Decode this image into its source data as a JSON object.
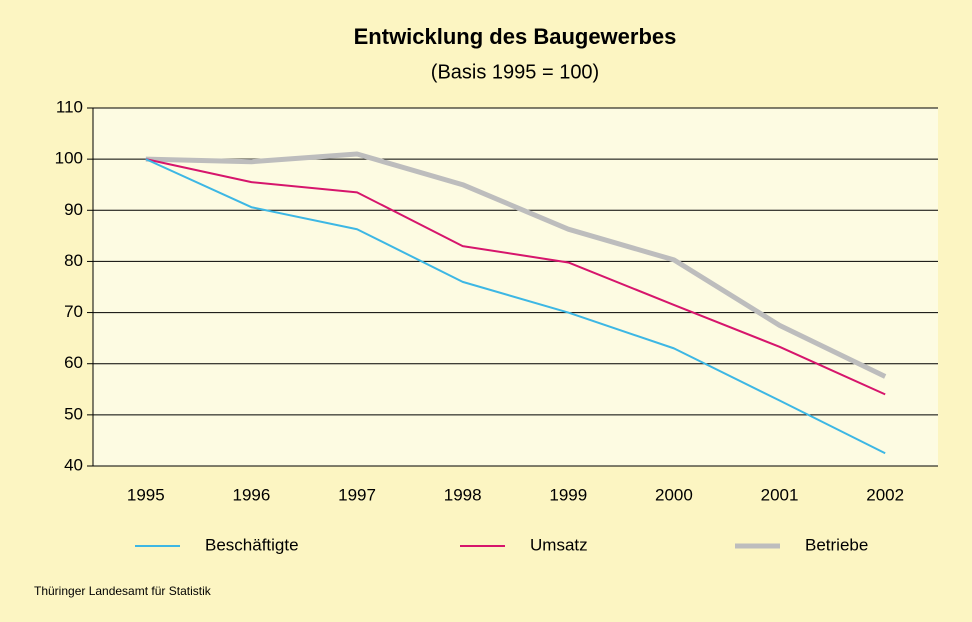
{
  "chart_data": {
    "type": "line",
    "title": "Entwicklung des Baugewerbes",
    "subtitle": "(Basis 1995 = 100)",
    "source": "Thüringer Landesamt für Statistik",
    "categories": [
      "1995",
      "1996",
      "1997",
      "1998",
      "1999",
      "2000",
      "2001",
      "2002"
    ],
    "series": [
      {
        "name": "Beschäftigte",
        "color": "#3db7e4",
        "values": [
          100,
          90.6,
          86.3,
          76,
          70,
          63,
          52.8,
          42.5
        ]
      },
      {
        "name": "Umsatz",
        "color": "#d6156c",
        "values": [
          100,
          95.5,
          93.5,
          83,
          79.8,
          71.5,
          63.3,
          54
        ]
      },
      {
        "name": "Betriebe",
        "color": "#bdbdbd",
        "values": [
          100,
          99.5,
          101,
          95,
          86.3,
          80.3,
          67.5,
          57.5
        ]
      }
    ],
    "ylim": [
      40,
      110
    ],
    "yticks": [
      40,
      50,
      60,
      70,
      80,
      90,
      100,
      110
    ],
    "grid": true,
    "legend": "bottom"
  }
}
